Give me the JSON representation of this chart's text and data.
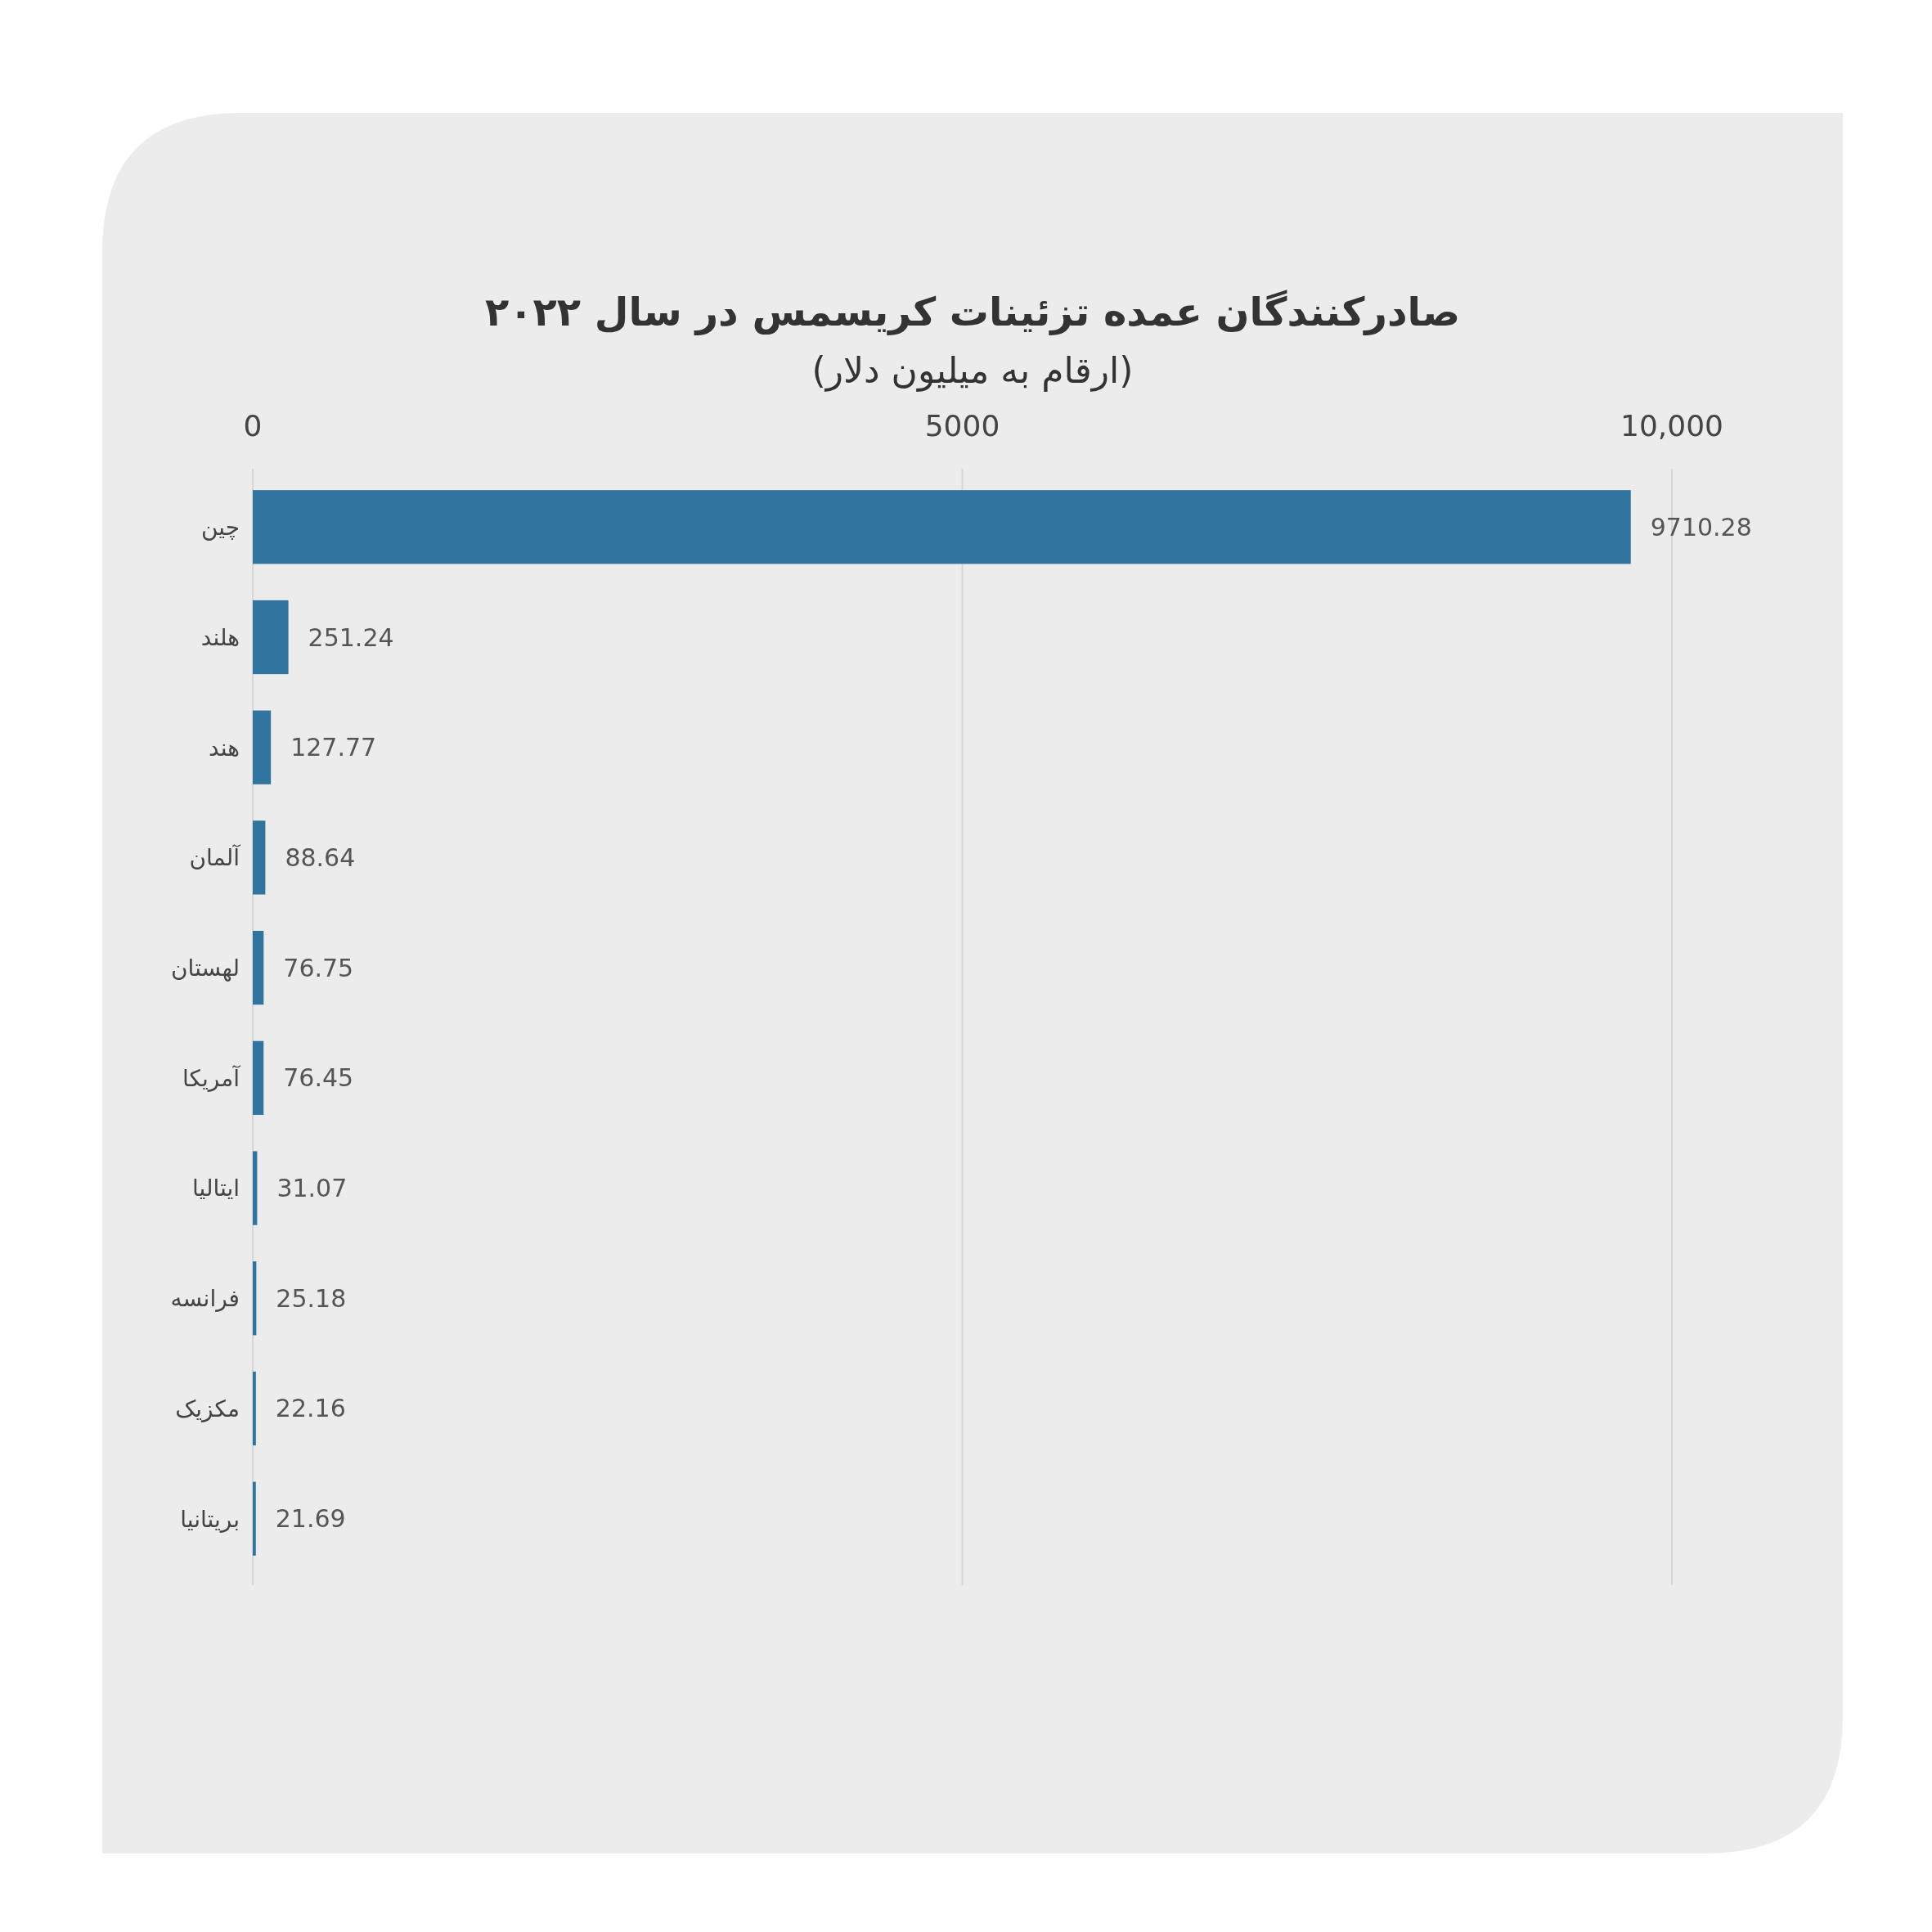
{
  "chart_data": {
    "type": "bar",
    "orientation": "horizontal",
    "title": "صادرکنندگان عمده تزئینات کریسمس در سال ۲۰۲۲",
    "subtitle": "(ارقام به میلیون دلار)",
    "categories": [
      "چین",
      "هلند",
      "هند",
      "آلمان",
      "لهستان",
      "آمریکا",
      "ایتالیا",
      "فرانسه",
      "مکزیک",
      "بریتانیا"
    ],
    "values": [
      9710.28,
      251.24,
      127.77,
      88.64,
      76.75,
      76.45,
      31.07,
      25.18,
      22.16,
      21.69
    ],
    "color": "#30749f",
    "xlim": [
      0,
      10000
    ],
    "xticks": [
      0,
      5000,
      {
        "value": 10000,
        "label": "10,000"
      }
    ],
    "grid": "x",
    "data_labels": true
  }
}
